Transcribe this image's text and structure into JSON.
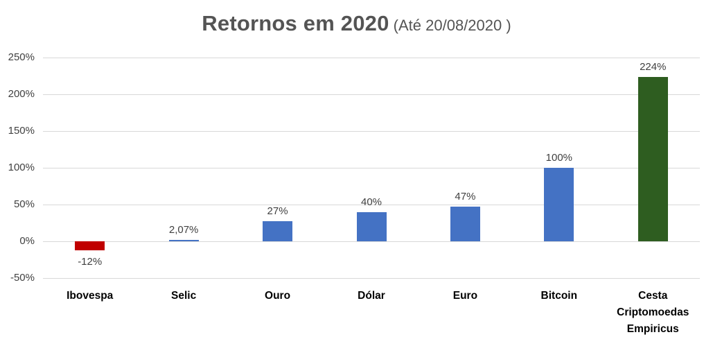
{
  "title": {
    "main": "Retornos em 2020",
    "suffix": " (Até 20/08/2020 )"
  },
  "chart_data": {
    "type": "bar",
    "title": "Retornos em 2020 (Até 20/08/2020 )",
    "categories": [
      "Ibovespa",
      "Selic",
      "Ouro",
      "Dólar",
      "Euro",
      "Bitcoin",
      "Cesta Criptomoedas Empiricus"
    ],
    "values": [
      -12,
      2.07,
      27,
      40,
      47,
      100,
      224
    ],
    "value_labels": [
      "-12%",
      "2,07%",
      "27%",
      "40%",
      "47%",
      "100%",
      "224%"
    ],
    "bar_colors": [
      "#c00000",
      "#4472c4",
      "#4472c4",
      "#4472c4",
      "#4472c4",
      "#4472c4",
      "#2e5d20"
    ],
    "xlabel": "",
    "ylabel": "",
    "ylim": [
      -50,
      250
    ],
    "ytick_values": [
      250,
      200,
      150,
      100,
      50,
      0,
      -50
    ],
    "ytick_labels": [
      "250%",
      "200%",
      "150%",
      "100%",
      "50%",
      "0%",
      "-50%"
    ],
    "grid": true,
    "legend": false
  },
  "appearance": {
    "background": "#ffffff",
    "gridline_color": "#d8d8d8",
    "title_color": "#545454",
    "tick_label_color": "#404040",
    "data_label_color": "#404040",
    "category_label_color": "#000000"
  }
}
